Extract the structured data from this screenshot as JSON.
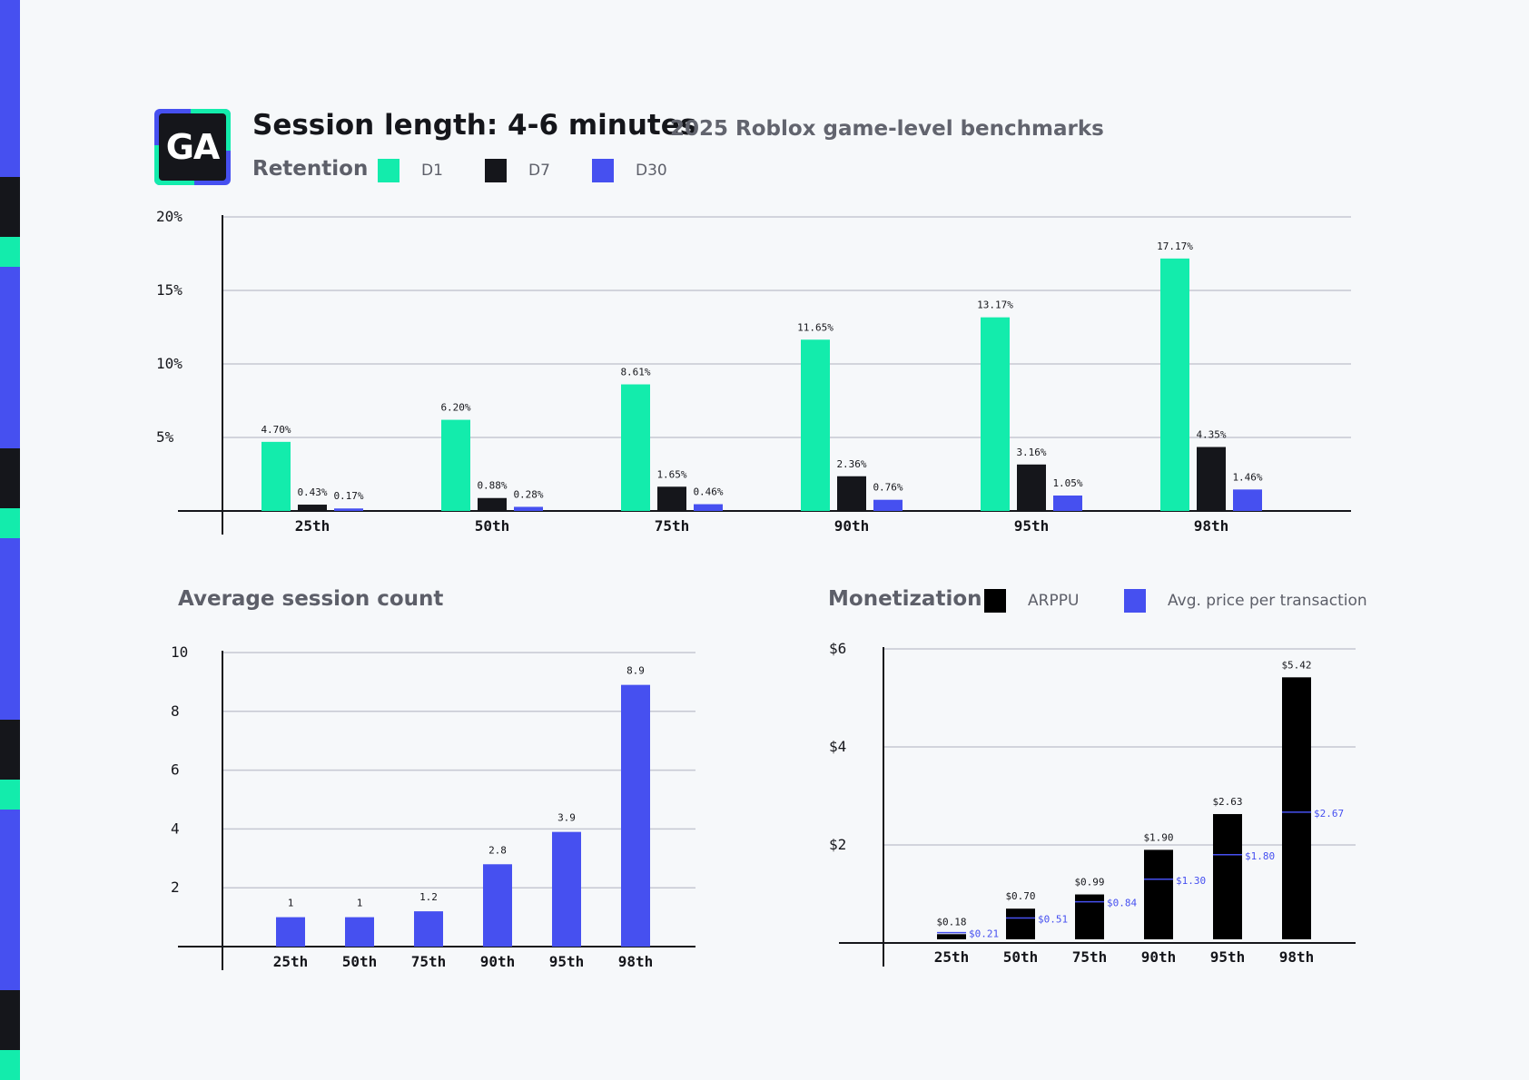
{
  "header": {
    "logo_text": "GA",
    "title": "Session length: 4-6 minutes",
    "subtitle": "2025 Roblox game-level benchmarks"
  },
  "colors": {
    "teal": "#13ecac",
    "black": "#15161b",
    "blue": "#4650f0",
    "background": "#f6f8fa"
  },
  "chart_data": [
    {
      "type": "bar",
      "title": "Retention",
      "categories": [
        "25th",
        "50th",
        "75th",
        "90th",
        "95th",
        "98th"
      ],
      "series": [
        {
          "name": "D1",
          "color": "#13ecac",
          "values": [
            4.7,
            6.2,
            8.61,
            11.65,
            13.17,
            17.17
          ],
          "labels": [
            "4.70%",
            "6.20%",
            "8.61%",
            "11.65%",
            "13.17%",
            "17.17%"
          ]
        },
        {
          "name": "D7",
          "color": "#15161b",
          "values": [
            0.43,
            0.88,
            1.65,
            2.36,
            3.16,
            4.35
          ],
          "labels": [
            "0.43%",
            "0.88%",
            "1.65%",
            "2.36%",
            "3.16%",
            "4.35%"
          ]
        },
        {
          "name": "D30",
          "color": "#4650f0",
          "values": [
            0.17,
            0.28,
            0.46,
            0.76,
            1.05,
            1.46
          ],
          "labels": [
            "0.17%",
            "0.28%",
            "0.46%",
            "0.76%",
            "1.05%",
            "1.46%"
          ]
        }
      ],
      "yticks": [
        "20%",
        "15%",
        "10%",
        "5%"
      ],
      "ylim": [
        0,
        20
      ],
      "grid": true
    },
    {
      "type": "bar",
      "title": "Average session count",
      "categories": [
        "25th",
        "50th",
        "75th",
        "90th",
        "95th",
        "98th"
      ],
      "values": [
        1,
        1,
        1.2,
        2.8,
        3.9,
        8.9
      ],
      "labels": [
        "1",
        "1",
        "1.2",
        "2.8",
        "3.9",
        "8.9"
      ],
      "color": "#4650f0",
      "yticks": [
        "10",
        "8",
        "6",
        "4",
        "2"
      ],
      "ylim": [
        0,
        10
      ],
      "grid": true
    },
    {
      "type": "bar",
      "title": "Monetization",
      "categories": [
        "25th",
        "50th",
        "75th",
        "90th",
        "95th",
        "98th"
      ],
      "series": [
        {
          "name": "ARPPU",
          "color": "#000000",
          "values": [
            0.18,
            0.7,
            0.99,
            1.9,
            2.63,
            5.42
          ],
          "labels": [
            "$0.18",
            "$0.70",
            "$0.99",
            "$1.90",
            "$2.63",
            "$5.42"
          ]
        },
        {
          "name": "Avg. price per transaction",
          "color": "#4650f0",
          "values": [
            0.21,
            0.51,
            0.84,
            1.3,
            1.8,
            2.67
          ],
          "labels": [
            "$0.21",
            "$0.51",
            "$0.84",
            "$1.30",
            "$1.80",
            "$2.67"
          ]
        }
      ],
      "yticks": [
        "$6",
        "$4",
        "$2"
      ],
      "ylim": [
        0,
        6
      ],
      "grid": true
    }
  ]
}
